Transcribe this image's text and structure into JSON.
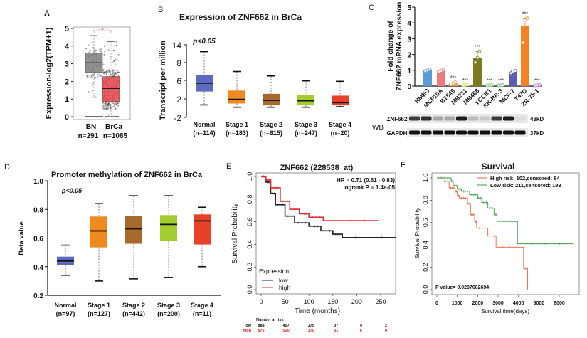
{
  "chart_data": [
    {
      "panel": "A",
      "type": "box",
      "ylabel": "Expression-log2(TPM+1)",
      "yticks": [
        0,
        1,
        2,
        3,
        4,
        5
      ],
      "ylim": [
        0,
        5
      ],
      "categories": [
        "BN",
        "BrCa"
      ],
      "counts": [
        "n=291",
        "n=1085"
      ],
      "colors": [
        "#808080",
        "#e8474b"
      ],
      "boxes": [
        {
          "min": 1.1,
          "q1": 2.5,
          "median": 3.05,
          "q3": 3.6,
          "max": 4.6
        },
        {
          "min": 0,
          "q1": 0.85,
          "median": 1.6,
          "q3": 2.27,
          "max": 4.25
        }
      ],
      "significance": "*"
    },
    {
      "panel": "B",
      "type": "box",
      "title": "Expression of ZNF662 in BrCa",
      "ylabel": "Transcript per million",
      "yticks": [
        -2,
        2,
        6,
        8,
        14
      ],
      "annotation": "p<0.05",
      "categories": [
        "Normal",
        "Stage 1",
        "Stage 2",
        "Stage 3",
        "Stage 4"
      ],
      "counts": [
        "(n=114)",
        "(n=183)",
        "(n=615)",
        "(n=247)",
        "(n=20)"
      ],
      "colors": [
        "#5b6bbf",
        "#f08a1e",
        "#a8692c",
        "#a3cc2e",
        "#e8412a"
      ],
      "boxes": [
        {
          "min": 0.7,
          "q1": 3.6,
          "median": 5.4,
          "q3": 6.6,
          "max": 11.7
        },
        {
          "min": 0.2,
          "q1": 1.0,
          "median": 1.9,
          "q3": 3.8,
          "max": 7.0
        },
        {
          "min": 0.2,
          "q1": 0.6,
          "median": 1.7,
          "q3": 3.1,
          "max": 6.5
        },
        {
          "min": 0.2,
          "q1": 0.6,
          "median": 1.6,
          "q3": 2.8,
          "max": 5.9
        },
        {
          "min": 0.3,
          "q1": 0.6,
          "median": 1.2,
          "q3": 2.7,
          "max": 5.8
        }
      ]
    },
    {
      "panel": "C",
      "type": "bar",
      "ylabel": [
        "Fold change of",
        "ZNF662 mRNA expression"
      ],
      "yticks": [
        0,
        1,
        2,
        3,
        4,
        5
      ],
      "ylim": [
        0,
        5
      ],
      "categories": [
        "HMEC",
        "MCF10A",
        "BT549",
        "MB231",
        "MB468",
        "YCCB1",
        "SK-BR-3",
        "MCF-7",
        "T47D",
        "ZR-75-1"
      ],
      "values": [
        1.0,
        0.97,
        0.2,
        0.08,
        1.8,
        0.05,
        0.05,
        0.9,
        3.8,
        0.05
      ],
      "replicates": [
        [
          0.95,
          1.0,
          1.05
        ],
        [
          0.9,
          0.98,
          1.03
        ],
        [
          0.12,
          0.2,
          0.25
        ],
        [
          0.05,
          0.08,
          0.1
        ],
        [
          1.5,
          1.8,
          2.2
        ],
        [
          0.04,
          0.05,
          0.06
        ],
        [
          0.04,
          0.05,
          0.06
        ],
        [
          0.82,
          0.93,
          0.97
        ],
        [
          2.75,
          4.2,
          4.3
        ],
        [
          0.04,
          0.05,
          0.06
        ]
      ],
      "colors": [
        "#5b9bd5",
        "#f07b7b",
        "#f4a460",
        "#d8e05a",
        "#7b7b1e",
        "#6cc46c",
        "#4caf50",
        "#5c5cb8",
        "#f58220",
        "#b05cc8"
      ],
      "significance": [
        "",
        "",
        "***",
        "***",
        "***",
        "***",
        "***",
        "",
        "***",
        "***"
      ],
      "western_blot": {
        "label": "WB",
        "rows": [
          {
            "name": "ZNF662",
            "size": "48kD",
            "intensities": [
              0.8,
              0.85,
              0.3,
              0.3,
              0.95,
              0.2,
              0.15,
              0.8,
              0.95,
              0.05
            ]
          },
          {
            "name": "GAPDH",
            "size": "37kD",
            "intensities": [
              1,
              1,
              1,
              1,
              1,
              1,
              1,
              1,
              1,
              1
            ]
          }
        ]
      }
    },
    {
      "panel": "D",
      "type": "box",
      "title": "Promoter methylation of ZNF662 in BrCa",
      "ylabel": "Beta value",
      "yticks": [
        0.2,
        0.4,
        0.6,
        0.8,
        1.0
      ],
      "ylim": [
        0.2,
        1.0
      ],
      "annotation": "p<0.05",
      "categories": [
        "Normal",
        "Stage 1",
        "Stage 2",
        "Stage 3",
        "Stage 4"
      ],
      "counts": [
        "(n=97)",
        "(n=127)",
        "(n=442)",
        "(n=200)",
        "(n=11)"
      ],
      "colors": [
        "#5b6bbf",
        "#f08a1e",
        "#a8692c",
        "#a3cc2e",
        "#e8412a"
      ],
      "boxes": [
        {
          "min": 0.34,
          "q1": 0.41,
          "median": 0.44,
          "q3": 0.47,
          "max": 0.55
        },
        {
          "min": 0.3,
          "q1": 0.535,
          "median": 0.65,
          "q3": 0.75,
          "max": 0.84
        },
        {
          "min": 0.315,
          "q1": 0.56,
          "median": 0.665,
          "q3": 0.755,
          "max": 0.895
        },
        {
          "min": 0.325,
          "q1": 0.58,
          "median": 0.695,
          "q3": 0.76,
          "max": 0.895
        },
        {
          "min": 0.4,
          "q1": 0.555,
          "median": 0.72,
          "q3": 0.765,
          "max": 0.815
        }
      ]
    },
    {
      "panel": "E",
      "type": "line",
      "title": "ZNF662 (228538_at)",
      "xlabel": "Time (months)",
      "ylabel": "Survival Probability",
      "xticks": [
        0,
        50,
        100,
        150,
        200,
        250
      ],
      "yticks": [
        0.0,
        0.2,
        0.4,
        0.6,
        0.8,
        1.0
      ],
      "annotations": [
        "HR = 0.71 (0.61 - 0.83)",
        "logrank P = 1.4e-05"
      ],
      "legend_title": "Expression",
      "series": [
        {
          "name": "low",
          "color": "#222222",
          "x": [
            0,
            10,
            20,
            30,
            50,
            70,
            100,
            125,
            150,
            170,
            280
          ],
          "y": [
            1.0,
            0.95,
            0.85,
            0.75,
            0.65,
            0.59,
            0.56,
            0.52,
            0.49,
            0.46,
            0.455
          ]
        },
        {
          "name": "high",
          "color": "#e0282e",
          "x": [
            0,
            10,
            20,
            40,
            60,
            80,
            100,
            130,
            245
          ],
          "y": [
            1.0,
            0.97,
            0.9,
            0.78,
            0.71,
            0.67,
            0.64,
            0.61,
            0.61
          ]
        }
      ],
      "risk_table": {
        "title": "Number at risk",
        "rows": [
          {
            "name": "low",
            "color": "#111111",
            "values": [
              "888",
              "457",
              "175",
              "37",
              "4",
              "2"
            ]
          },
          {
            "name": "high",
            "color": "#e0282e",
            "values": [
              "876",
              "520",
              "170",
              "31",
              "6",
              "0"
            ]
          }
        ]
      }
    },
    {
      "panel": "F",
      "type": "line",
      "title": "Survival",
      "xlabel": "Survival time(days)",
      "ylabel": "Survival Probability",
      "xticks": [
        0,
        1000,
        2000,
        3000,
        4000,
        5000,
        6000
      ],
      "yticks": [
        0.0,
        0.2,
        0.4,
        0.6,
        0.8,
        1.0
      ],
      "annotation": "P value= 0.0207662694",
      "series": [
        {
          "name": "High risk: 102,censored: 84",
          "color": "#e8643c",
          "x": [
            0,
            300,
            600,
            900,
            1000,
            1100,
            1500,
            1650,
            1850,
            1950,
            2500,
            2900,
            4250,
            4450
          ],
          "y": [
            1.0,
            0.97,
            0.91,
            0.88,
            0.84,
            0.82,
            0.77,
            0.67,
            0.61,
            0.55,
            0.48,
            0.38,
            0.19,
            0.0
          ]
        },
        {
          "name": "Low  risk: 211,censored: 193",
          "color": "#3a9a4a",
          "x": [
            0,
            700,
            800,
            1000,
            1200,
            1600,
            2000,
            2200,
            2500,
            2800,
            2950,
            3900,
            3950,
            6700
          ],
          "y": [
            1.0,
            0.97,
            0.93,
            0.9,
            0.88,
            0.85,
            0.82,
            0.78,
            0.73,
            0.67,
            0.61,
            0.61,
            0.41,
            0.41
          ]
        }
      ]
    }
  ]
}
